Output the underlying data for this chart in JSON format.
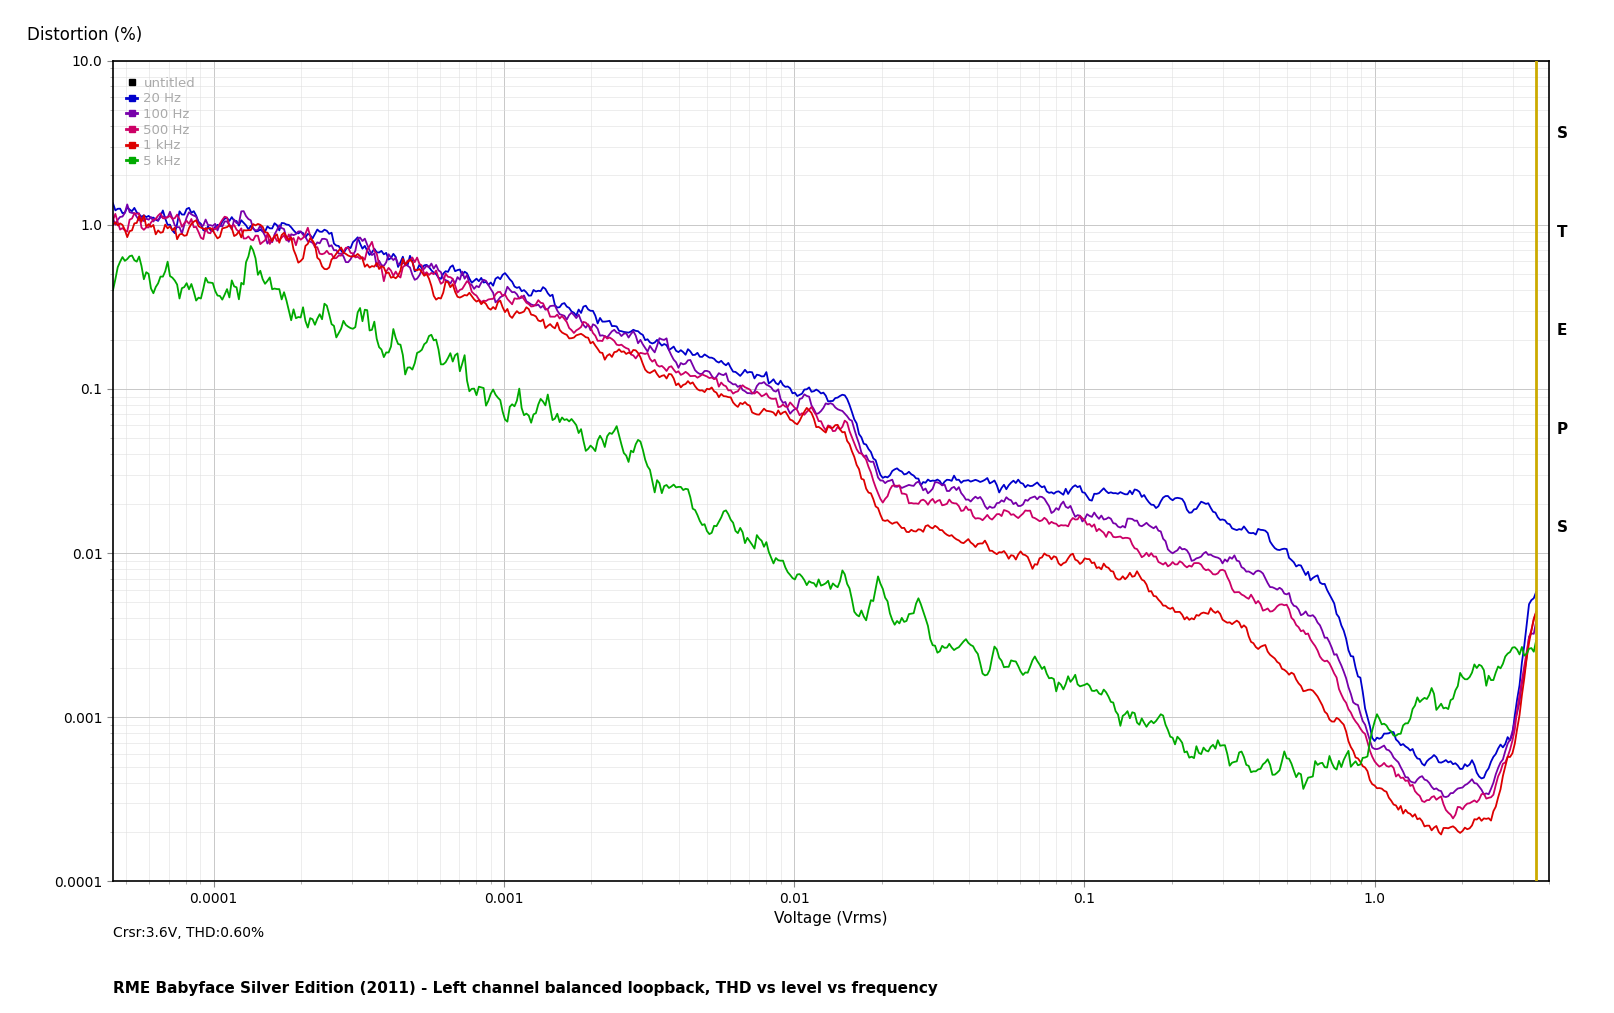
{
  "title": "RME Babyface Silver Edition (2011) - Left channel balanced loopback, THD vs level vs frequency",
  "ylabel": "Distortion (%)",
  "xlabel": "Voltage (Vrms)",
  "cursor_text": "Crsr:3.6V, THD:0.60%",
  "steps_text": "S\nT\nE\nP\nS",
  "xlim": [
    4.5e-05,
    4.0
  ],
  "ylim": [
    0.0001,
    10.0
  ],
  "background_color": "#ffffff",
  "grid_major_color": "#c8c8c8",
  "grid_minor_color": "#e0e0e0",
  "legend_labels": [
    "untitled",
    "20 Hz",
    "100 Hz",
    "500 Hz",
    "1 kHz",
    "5 kHz"
  ],
  "legend_colors": [
    "#000000",
    "#0000cc",
    "#7700aa",
    "#cc0066",
    "#dd0000",
    "#00aa00"
  ],
  "yellow_line_x": 3.6,
  "yellow_line_color": "#ccaa00",
  "cursor_label_fontsize": 10,
  "title_fontsize": 11,
  "axis_label_fontsize": 11,
  "tick_label_fontsize": 10,
  "legend_text_color": "#aaaaaa"
}
